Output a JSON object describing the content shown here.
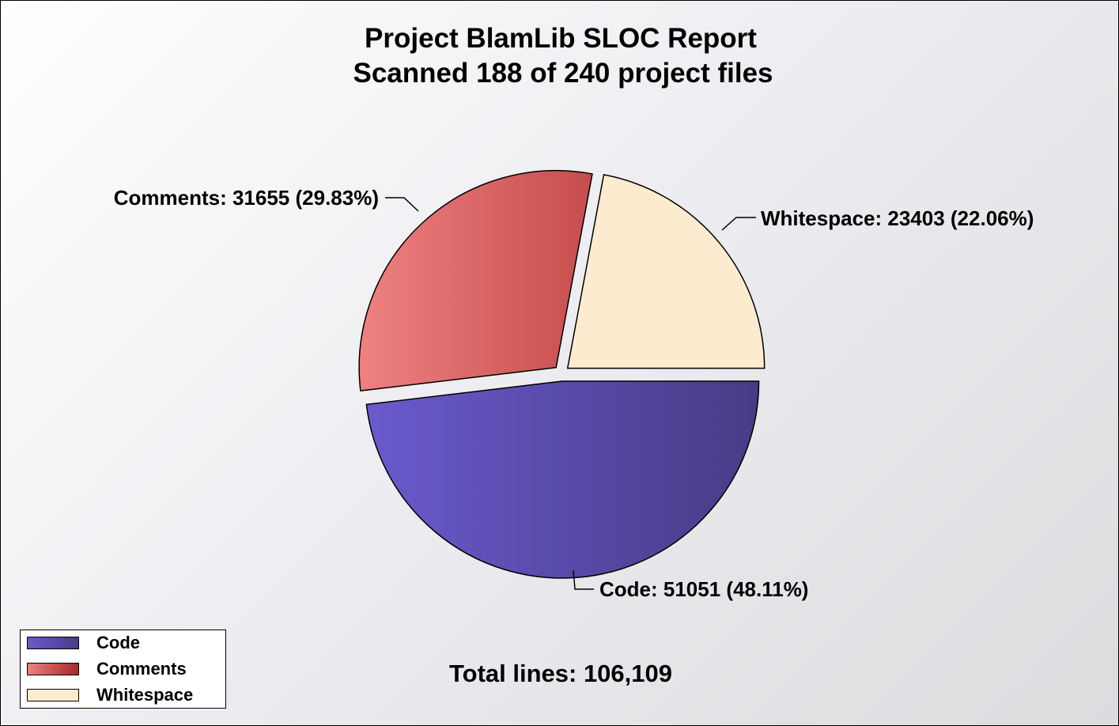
{
  "chart_data": {
    "type": "pie",
    "title": [
      "Project BlamLib SLOC Report",
      "Scanned 188 of 240 project files"
    ],
    "slices": [
      {
        "name": "Code",
        "value": 51051,
        "percent": 48.11,
        "label": "Code: 51051 (48.11%)",
        "color_light": "#6a5acd",
        "color_dark": "#463c86"
      },
      {
        "name": "Comments",
        "value": 31655,
        "percent": 29.83,
        "label": "Comments: 31655 (29.83%)",
        "color_light": "#ee8080",
        "color_dark": "#a82828"
      },
      {
        "name": "Whitespace",
        "value": 23403,
        "percent": 22.06,
        "label": "Whitespace: 23403 (22.06%)",
        "color_light": "#fdebd0",
        "color_dark": "#fdebd0"
      }
    ],
    "total_label": "Total lines: 106,109",
    "legend": {
      "placement": "bottom-left",
      "entries": [
        "Code",
        "Comments",
        "Whitespace"
      ]
    }
  }
}
